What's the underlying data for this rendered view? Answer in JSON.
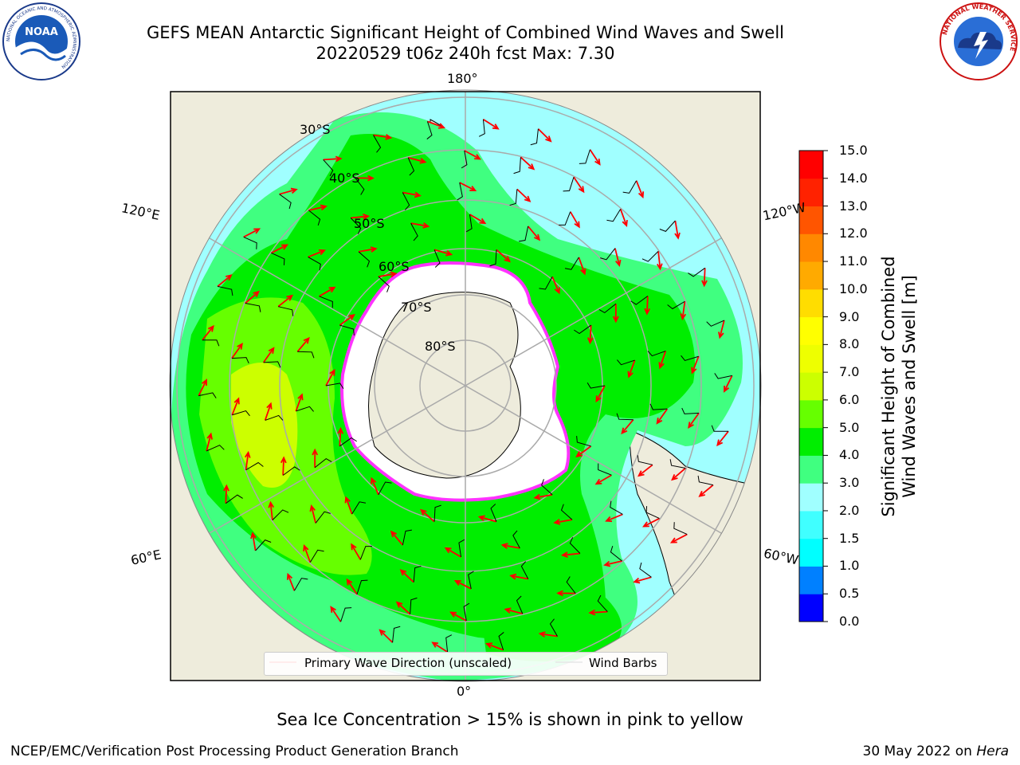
{
  "title": {
    "line1": "GEFS MEAN Antarctic Significant Height of Combined Wind Waves and Swell",
    "line2": "20220529 t06z 240h fcst   Max: 7.30"
  },
  "logos": {
    "noaa_text": "NOAA",
    "noaa_ring_text": "NATIONAL OCEANIC AND ATMOSPHERIC ADMINISTRATION",
    "noaa_ring_bottom": "U.S. DEPARTMENT OF COMMERCE",
    "nws_ring_text": "NATIONAL WEATHER SERVICE"
  },
  "map": {
    "longitude_labels": [
      "180°",
      "120°E",
      "120°W",
      "60°E",
      "60°W",
      "0°"
    ],
    "latitude_labels": [
      "30°S",
      "40°S",
      "50°S",
      "60°S",
      "70°S",
      "80°S"
    ]
  },
  "colorbar": {
    "title_line1": "Significant Height of Combined",
    "title_line2": "Wind Waves and Swell [m]",
    "ticks": [
      "0.0",
      "0.5",
      "1.0",
      "1.5",
      "2.0",
      "3.0",
      "4.0",
      "5.0",
      "6.0",
      "7.0",
      "8.0",
      "9.0",
      "10.0",
      "11.0",
      "12.0",
      "13.0",
      "14.0",
      "15.0"
    ],
    "colors": [
      "#0000ff",
      "#0080ff",
      "#00ffff",
      "#40ffff",
      "#a0ffff",
      "#40ff80",
      "#00ee00",
      "#66ff00",
      "#ccff00",
      "#eeff00",
      "#ffff00",
      "#ffdd00",
      "#ffaa00",
      "#ff8800",
      "#ff5500",
      "#ff2200",
      "#ff0000"
    ]
  },
  "legend": {
    "item1": "Primary Wave Direction (unscaled)",
    "item2": "Wind Barbs",
    "item1_color": "#ff0000",
    "item2_color": "#000000"
  },
  "note": "Sea Ice Concentration > 15% is shown in pink to yellow",
  "footer": {
    "left": "NCEP/EMC/Verification Post Processing Product Generation Branch",
    "right_prefix": "30 May 2022 on ",
    "right_host": "Hera"
  }
}
